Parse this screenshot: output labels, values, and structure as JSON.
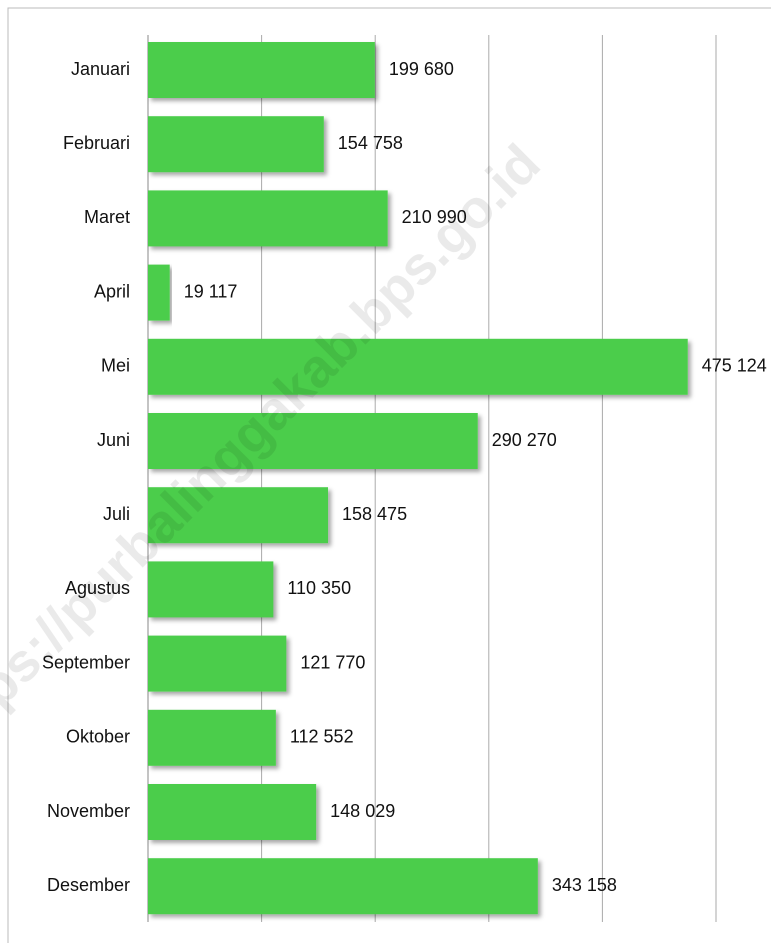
{
  "chart_data": {
    "type": "hbar",
    "categories": [
      "Januari",
      "Februari",
      "Maret",
      "April",
      "Mei",
      "Juni",
      "Juli",
      "Agustus",
      "September",
      "Oktober",
      "November",
      "Desember"
    ],
    "values": [
      199680,
      154758,
      210990,
      19117,
      475124,
      290270,
      158475,
      110350,
      121770,
      112552,
      148029,
      343158
    ],
    "value_labels": [
      "199 680",
      "154 758",
      "210 990",
      "19 117",
      "475 124",
      "290 270",
      "158 475",
      "110 350",
      "121 770",
      "112 552",
      "148 029",
      "343 158"
    ],
    "color": "#4ccd4c",
    "xlim": [
      0,
      500000
    ],
    "xticks": [
      0,
      100000,
      200000,
      300000,
      400000,
      500000
    ],
    "grid": true,
    "watermark": "ps://purbalinggakab.bps.go.id"
  }
}
